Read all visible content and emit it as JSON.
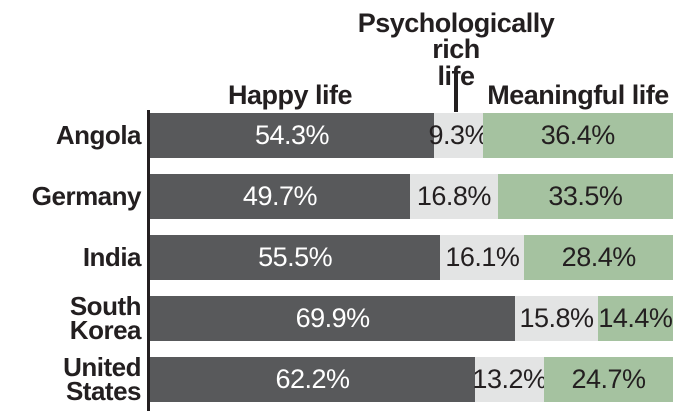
{
  "header": {
    "psych_label_lines": [
      "Psychologically rich",
      "life"
    ],
    "happy_label": "Happy life",
    "meaningful_label": "Meaningful life"
  },
  "chart_data": {
    "type": "bar",
    "orientation": "horizontal",
    "stacking": "100%",
    "categories": [
      "Angola",
      "Germany",
      "India",
      "South Korea",
      "United States"
    ],
    "series": [
      {
        "name": "Happy life",
        "color": "#58595b",
        "text_color": "#ffffff",
        "values": [
          54.3,
          49.7,
          55.5,
          69.9,
          62.2
        ]
      },
      {
        "name": "Psychologically rich life",
        "color": "#e3e4e4",
        "text_color": "#231f20",
        "values": [
          9.3,
          16.8,
          16.1,
          15.8,
          13.2
        ]
      },
      {
        "name": "Meaningful life",
        "color": "#a5c2a0",
        "text_color": "#231f20",
        "values": [
          36.4,
          33.5,
          28.4,
          14.4,
          24.7
        ]
      }
    ],
    "value_suffix": "%",
    "xlim": [
      0,
      100
    ],
    "grid": false,
    "legend_position": "top"
  },
  "colors": {
    "axis": "#231f20",
    "text": "#231f20",
    "background": "#ffffff"
  }
}
